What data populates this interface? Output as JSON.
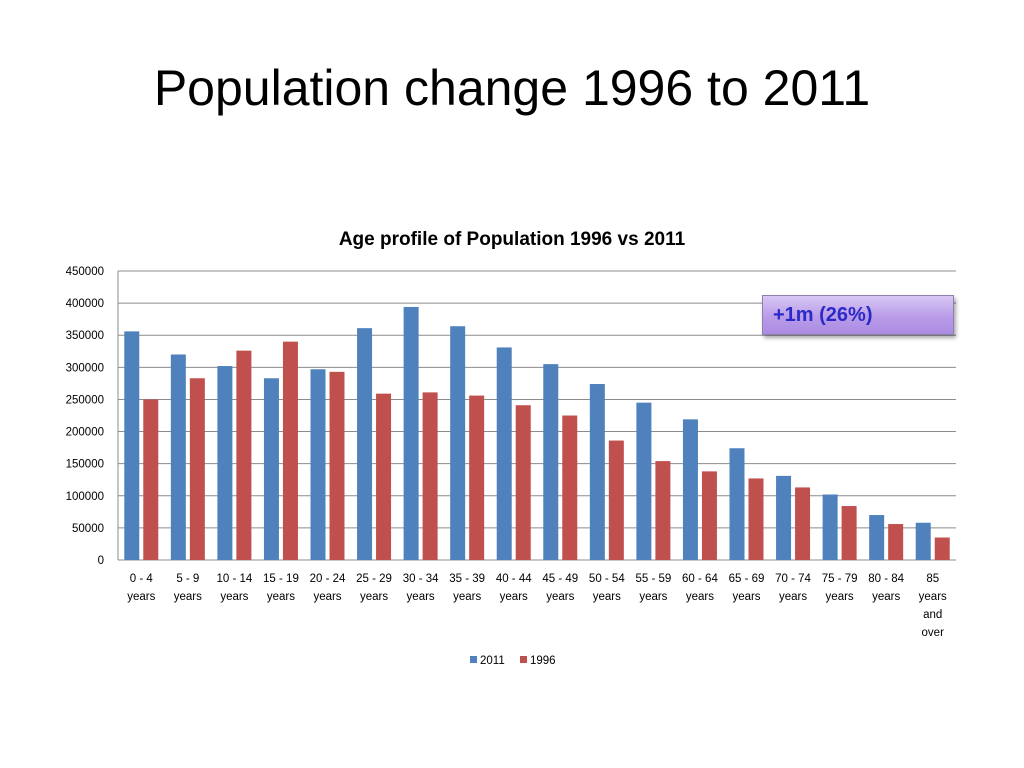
{
  "slide": {
    "title": "Population change 1996 to 2011"
  },
  "callout": {
    "text": "+1m (26%)"
  },
  "chart_data": {
    "type": "bar",
    "title": "Age profile of Population 1996 vs 2011",
    "categories": [
      [
        "0 - 4",
        "years"
      ],
      [
        "5 - 9",
        "years"
      ],
      [
        "10 - 14",
        "years"
      ],
      [
        "15 - 19",
        "years"
      ],
      [
        "20 - 24",
        "years"
      ],
      [
        "25 - 29",
        "years"
      ],
      [
        "30 - 34",
        "years"
      ],
      [
        "35 - 39",
        "years"
      ],
      [
        "40 - 44",
        "years"
      ],
      [
        "45 - 49",
        "years"
      ],
      [
        "50 - 54",
        "years"
      ],
      [
        "55 - 59",
        "years"
      ],
      [
        "60 - 64",
        "years"
      ],
      [
        "65 - 69",
        "years"
      ],
      [
        "70 - 74",
        "years"
      ],
      [
        "75 - 79",
        "years"
      ],
      [
        "80 - 84",
        "years"
      ],
      [
        "85",
        "years",
        "and",
        "over"
      ]
    ],
    "series": [
      {
        "name": "2011",
        "color": "#4f81bd",
        "values": [
          356000,
          320000,
          302000,
          283000,
          297000,
          361000,
          394000,
          364000,
          331000,
          305000,
          274000,
          245000,
          219000,
          174000,
          131000,
          102000,
          70000,
          58000
        ]
      },
      {
        "name": "1996",
        "color": "#c0504d",
        "values": [
          250000,
          283000,
          326000,
          340000,
          293000,
          259000,
          261000,
          256000,
          241000,
          225000,
          186000,
          154000,
          138000,
          127000,
          113000,
          84000,
          56000,
          35000
        ]
      }
    ],
    "ylim": [
      0,
      450000
    ],
    "yticks": [
      "0",
      "50000",
      "100000",
      "150000",
      "200000",
      "250000",
      "300000",
      "350000",
      "400000",
      "450000"
    ],
    "grid": true,
    "legend": "bottom",
    "xlabel": "",
    "ylabel": ""
  }
}
